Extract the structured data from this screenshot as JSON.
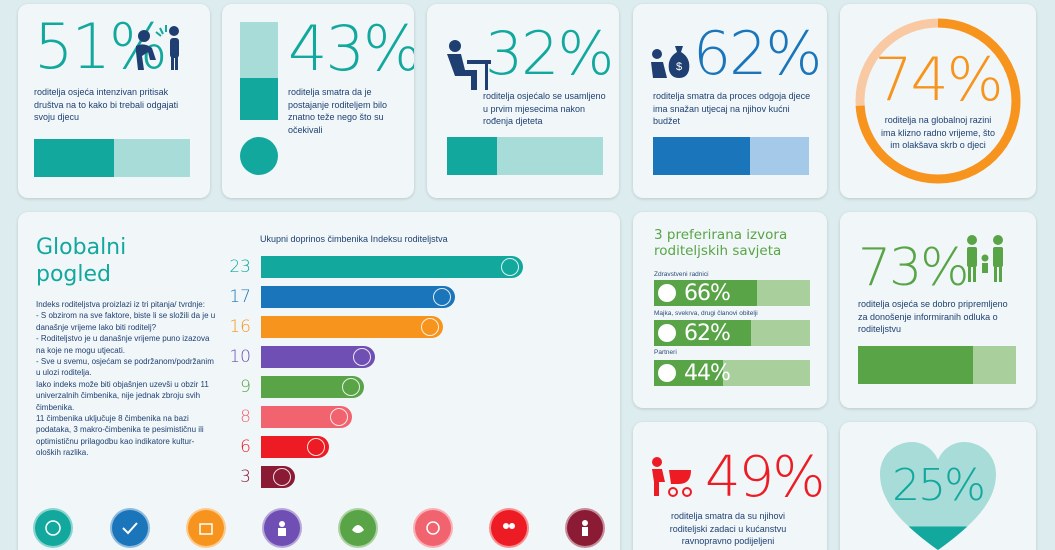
{
  "stats": {
    "s51": {
      "value": "51%",
      "text": "roditelja osjeća intenzivan pritisak društva na to kako bi trebali odgajati svoju djecu",
      "color": "#13a89e",
      "fill": 0.51
    },
    "s43": {
      "value": "43%",
      "text": "roditelja smatra da je postajanje roditeljem bilo znatno teže nego što su očekivali",
      "color": "#13a89e",
      "fill": 0.43
    },
    "s32": {
      "value": "32%",
      "text": "roditelja osjećalo se usamljeno u prvim mjesecima nakon rođenja djeteta",
      "color": "#13a89e",
      "fill": 0.32
    },
    "s62": {
      "value": "62%",
      "text": "roditelja smatra da proces odgoja djece ima snažan utjecaj na njihov kućni budžet",
      "color": "#1a75bb",
      "fill": 0.62
    },
    "s74": {
      "value": "74%",
      "text": "roditelja na globalnoj razini ima klizno radno vrijeme, što im olakšava skrb o djeci",
      "color": "#f7941d",
      "fill": 0.74
    },
    "s73": {
      "value": "73%",
      "text": "roditelja osjeća se dobro pripremljeno za donošenje informiranih odluka o roditeljstvu",
      "color": "#58a447",
      "fill": 0.73
    },
    "s49": {
      "value": "49%",
      "text": "roditelja smatra da su njihovi roditeljski zadaci u kućanstvu ravnopravno podijeljeni",
      "color": "#ed1c24",
      "fill": 0.49
    },
    "s25": {
      "value": "25%",
      "color": "#13a89e",
      "fill": 0.25
    }
  },
  "global": {
    "title_line1": "Globalni",
    "title_line2": "pogled",
    "body": [
      "Indeks roditeljstva proizlazi iz tri pitanja/ tvrdnje:",
      "- S obzirom na sve faktore, biste li se složili da je u današnje vrijeme lako biti roditelj?",
      "- Roditeljstvo je u današnje vrijeme puno izazova na koje ne mogu utjecati.",
      "- Sve u svemu, osjećam se podržanom/podržanim u ulozi roditelja.",
      "Iako indeks može biti objašnjen uzevši u obzir 11 univerzalnih čimbenika, nije jednak zbroju svih čimbenika.",
      "11 čimbenika uključuje 8 čimbenika na bazi podataka, 3 makro-čimbenika te pesimističnu ili optimističnu prilagodbu kao indikatore kultur-oloških razlika."
    ]
  },
  "chart_data": {
    "type": "bar",
    "title": "Ukupni doprinos čimbenika Indeksu roditeljstva",
    "orientation": "horizontal",
    "values": [
      23,
      17,
      16,
      10,
      9,
      8,
      6,
      3
    ],
    "colors": [
      "#13a89e",
      "#1a75bb",
      "#f7941d",
      "#6f4fb3",
      "#58a447",
      "#f26370",
      "#ed1c24",
      "#8b1a35"
    ],
    "xlim": [
      0,
      23
    ]
  },
  "sources": {
    "title_line1": "3 preferirana izvora",
    "title_line2": "roditeljskih savjeta",
    "items": [
      {
        "label": "Zdravstveni radnici",
        "value": "66%",
        "fill": 0.66
      },
      {
        "label": "Majka, svekrva, drugi članovi obitelji",
        "value": "62%",
        "fill": 0.62
      },
      {
        "label": "Partneri",
        "value": "44%",
        "fill": 0.44
      }
    ]
  }
}
